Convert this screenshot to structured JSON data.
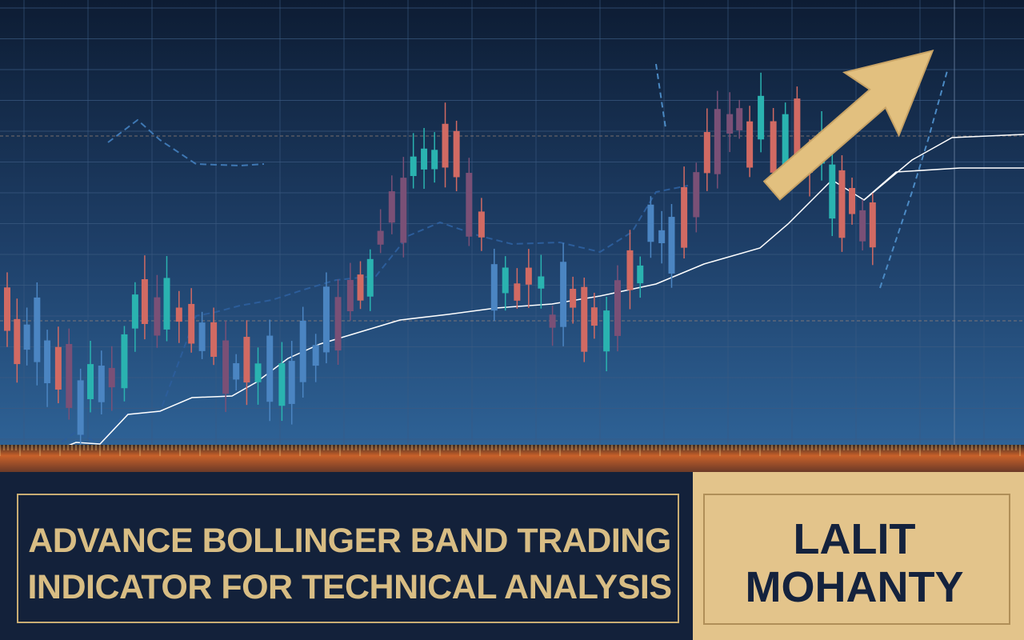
{
  "banner": {
    "title_lines": [
      "ADVANCE BOLLINGER BAND TRADING",
      "INDICATOR FOR TECHNICAL ANALYSIS"
    ],
    "author_lines": [
      "LALIT",
      "MOHANTY"
    ]
  }
}
